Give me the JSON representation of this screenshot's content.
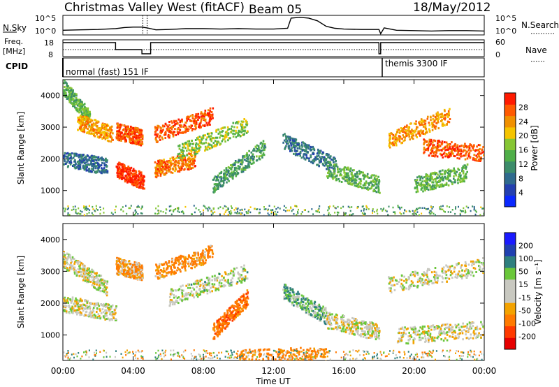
{
  "header": {
    "title": "Christmas Valley West (fitACF)",
    "beam": "Beam 05",
    "date": "18/May/2012"
  },
  "panel_labels": {
    "nsky": "N.Sky",
    "nsearch": "N.Search",
    "freq_line1": "Freq.",
    "freq_line2": "[MHz]",
    "nave": "Nave",
    "cpid": "CPID"
  },
  "cpid_modes": [
    "normal (fast) 151 IF",
    "themis 3300 IF"
  ],
  "colors": {
    "power_scale": [
      "#0a28ff",
      "#2440b0",
      "#2f6a8e",
      "#3c8c6a",
      "#4fae48",
      "#86c634",
      "#f5c400",
      "#f09000",
      "#ff5a00",
      "#ff1a00"
    ],
    "velocity_scale": [
      "#1a1aff",
      "#2040b0",
      "#2e7f7e",
      "#6ac73a",
      "#c8c8c0",
      "#c8c8c0",
      "#f3a200",
      "#ff7a00",
      "#ff3a00",
      "#e60000"
    ]
  },
  "chart_data": [
    {
      "type": "line",
      "panel": "noise",
      "ylabel_left": "N.Sky",
      "ylabel_right": "N.Search",
      "yticks_left": [
        "10^5",
        "10^0"
      ],
      "yticks_right": [
        "10^5",
        "10^0"
      ],
      "series": [
        {
          "name": "N.Sky",
          "x": [
            0,
            1,
            2,
            2.5,
            3,
            3.5,
            4,
            4.5,
            4.8,
            5.3,
            6,
            7,
            8,
            9,
            10,
            11,
            12,
            12.8,
            13,
            13.5,
            14,
            14.5,
            15,
            15.5,
            16,
            17,
            18,
            18.1,
            18.3,
            19,
            20,
            21,
            22,
            23,
            24
          ],
          "y": [
            1.2,
            1.3,
            1.4,
            1.5,
            1.6,
            1.9,
            2.0,
            2.0,
            1.8,
            1.3,
            1.4,
            1.6,
            1.6,
            1.5,
            1.6,
            1.5,
            1.5,
            1.7,
            4.3,
            4.5,
            4.3,
            3.6,
            2.2,
            1.7,
            1.5,
            1.4,
            1.4,
            0.3,
            1.8,
            1.2,
            1.1,
            1.0,
            1.1,
            1.1,
            1.0
          ]
        }
      ]
    },
    {
      "type": "line",
      "panel": "frequency",
      "ylabel_left": "Freq. [MHz]",
      "ylabel_right": "Nave",
      "yticks_left": [
        "18",
        "8"
      ],
      "yticks_right": [
        "60",
        "0"
      ],
      "series": [
        {
          "name": "Freq.",
          "x": [
            0,
            3,
            3,
            4.5,
            4.5,
            5,
            5,
            15,
            15,
            18,
            18,
            18.1,
            18.1,
            24
          ],
          "y": [
            16,
            16,
            11,
            11,
            8,
            8,
            16,
            16,
            16,
            16,
            8,
            8,
            16,
            16
          ]
        },
        {
          "name": "Nave",
          "x": [
            0,
            24
          ],
          "y": [
            25,
            25
          ]
        }
      ]
    },
    {
      "type": "heatmap",
      "panel": "power",
      "ylabel": "Slant Range [km]",
      "yticks": [
        "1000",
        "2000",
        "3000",
        "4000"
      ],
      "ylim": [
        200,
        4500
      ],
      "xlim": [
        0,
        24
      ],
      "colorbar_label": "Power [dB]",
      "colorbar_ticks": [
        "4",
        "8",
        "12",
        "16",
        "20",
        "24",
        "28"
      ],
      "colorbar_range": [
        0,
        30
      ],
      "streaks": [
        {
          "x": [
            0.0,
            1.5
          ],
          "y": [
            4300,
            3300
          ],
          "value": 14
        },
        {
          "x": [
            0.8,
            2.8
          ],
          "y": [
            3200,
            2800
          ],
          "value": 22
        },
        {
          "x": [
            3.0,
            4.5
          ],
          "y": [
            2900,
            2700
          ],
          "value": 26
        },
        {
          "x": [
            0.0,
            2.5
          ],
          "y": [
            2000,
            1800
          ],
          "value": 8
        },
        {
          "x": [
            3.0,
            4.6
          ],
          "y": [
            1700,
            1300
          ],
          "value": 28
        },
        {
          "x": [
            5.2,
            8.5
          ],
          "y": [
            2800,
            3400
          ],
          "value": 26
        },
        {
          "x": [
            5.2,
            7.5
          ],
          "y": [
            1700,
            2000
          ],
          "value": 24
        },
        {
          "x": [
            6.5,
            10.5
          ],
          "y": [
            2200,
            3100
          ],
          "value": 16
        },
        {
          "x": [
            8.5,
            11.5
          ],
          "y": [
            1200,
            2400
          ],
          "value": 12
        },
        {
          "x": [
            12.5,
            15.5
          ],
          "y": [
            2600,
            1800
          ],
          "value": 8
        },
        {
          "x": [
            15.0,
            18.0
          ],
          "y": [
            1700,
            1200
          ],
          "value": 14
        },
        {
          "x": [
            18.5,
            22.0
          ],
          "y": [
            2600,
            3400
          ],
          "value": 22
        },
        {
          "x": [
            20.5,
            24.0
          ],
          "y": [
            2400,
            2200
          ],
          "value": 26
        },
        {
          "x": [
            20.0,
            23.0
          ],
          "y": [
            1200,
            1600
          ],
          "value": 14
        }
      ]
    },
    {
      "type": "heatmap",
      "panel": "velocity",
      "ylabel": "Slant Range [km]",
      "yticks": [
        "1000",
        "2000",
        "3000",
        "4000"
      ],
      "ylim": [
        200,
        4500
      ],
      "xlim": [
        0,
        24
      ],
      "xlabel": "Time UT",
      "xticks": [
        "00:00",
        "04:00",
        "08:00",
        "12:00",
        "16:00",
        "20:00",
        "00:00"
      ],
      "colorbar_label": "Velocity [m s⁻¹]",
      "colorbar_ticks": [
        "200",
        "100",
        "50",
        "15",
        "-15",
        "-50",
        "-100",
        "-200"
      ],
      "streaks": [
        {
          "x": [
            0.0,
            2.5
          ],
          "y": [
            3400,
            2500
          ],
          "value": 0
        },
        {
          "x": [
            3.0,
            4.5
          ],
          "y": [
            3200,
            3000
          ],
          "value": -30
        },
        {
          "x": [
            0.0,
            3.0
          ],
          "y": [
            2000,
            1700
          ],
          "value": 0
        },
        {
          "x": [
            5.2,
            8.5
          ],
          "y": [
            3000,
            3600
          ],
          "value": -40
        },
        {
          "x": [
            8.5,
            10.5
          ],
          "y": [
            1100,
            2200
          ],
          "value": -60
        },
        {
          "x": [
            6.0,
            10.5
          ],
          "y": [
            2200,
            3000
          ],
          "value": 5
        },
        {
          "x": [
            12.5,
            15.0
          ],
          "y": [
            2400,
            1600
          ],
          "value": 30
        },
        {
          "x": [
            15.0,
            18.0
          ],
          "y": [
            1500,
            1100
          ],
          "value": 0
        },
        {
          "x": [
            18.5,
            24.0
          ],
          "y": [
            2600,
            3200
          ],
          "value": 0
        },
        {
          "x": [
            19.0,
            24.0
          ],
          "y": [
            1000,
            1200
          ],
          "value": 0
        },
        {
          "x": [
            10.0,
            15.0
          ],
          "y": [
            300,
            400
          ],
          "value": -40
        }
      ]
    }
  ]
}
